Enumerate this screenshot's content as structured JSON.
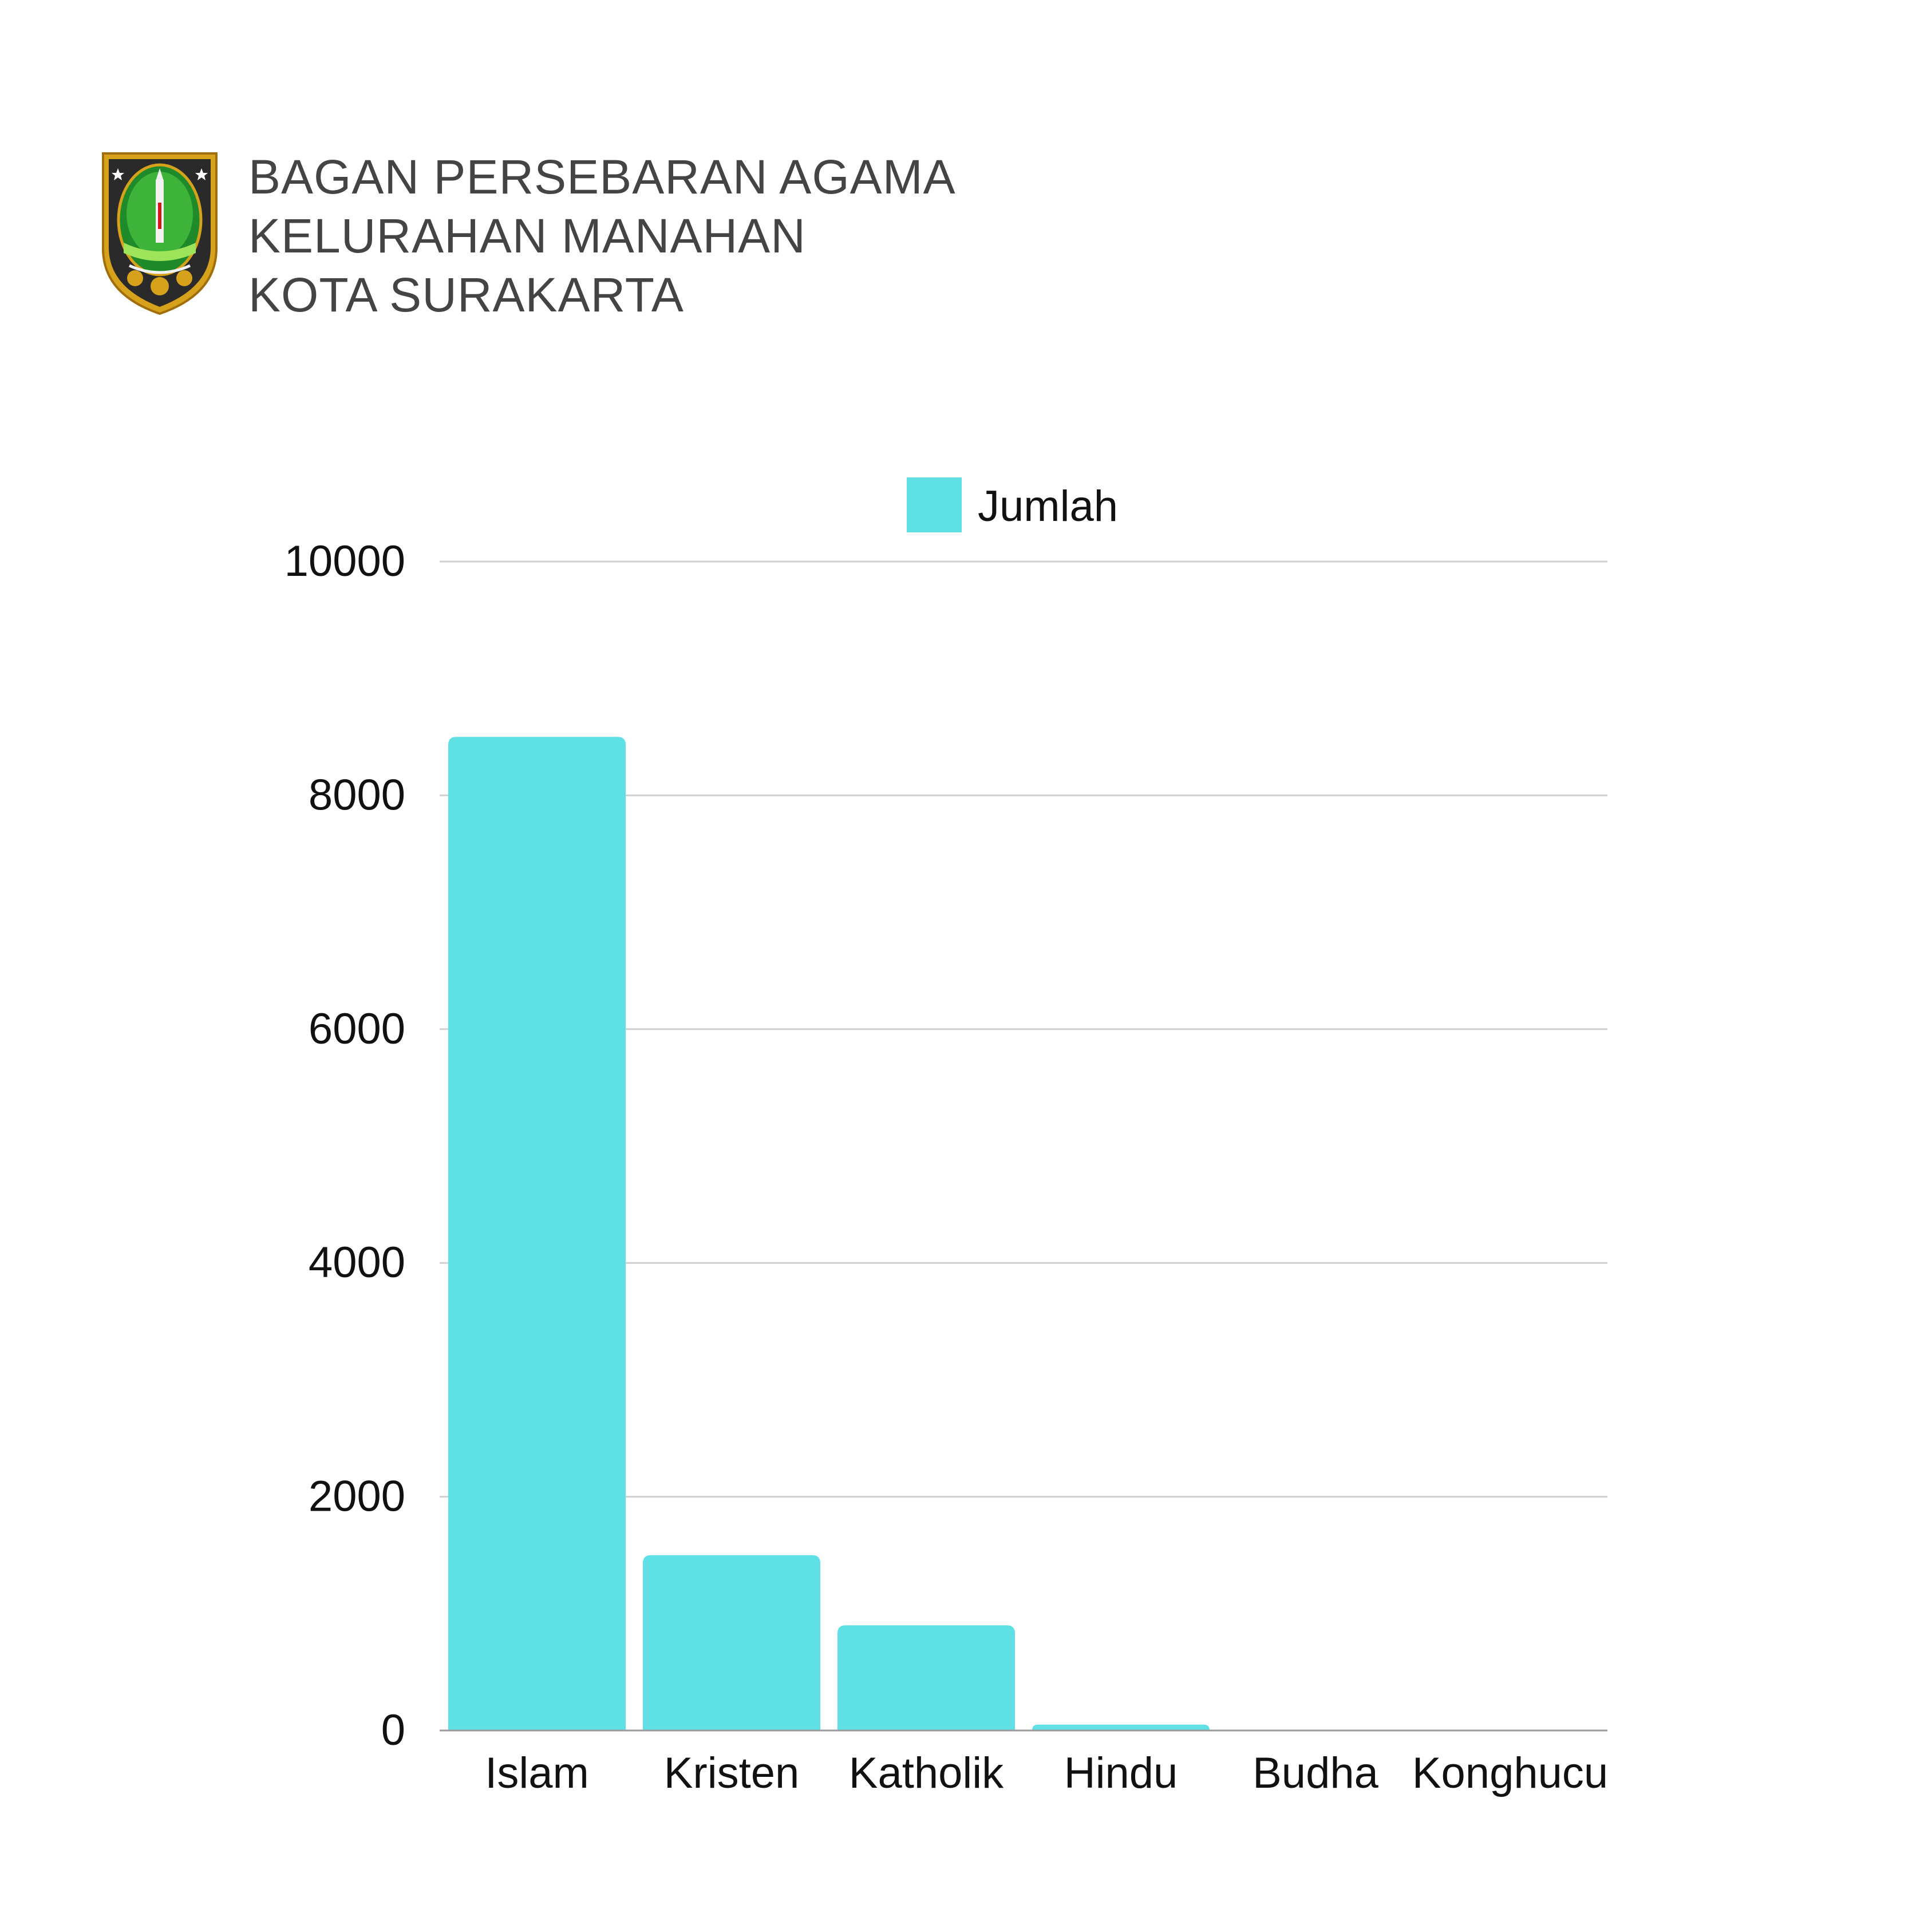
{
  "header": {
    "title_lines": [
      "BAGAN PERSEBARAN AGAMA",
      "KELURAHAN MANAHAN",
      "KOTA SURAKARTA"
    ],
    "logo": "surakarta-city-emblem"
  },
  "colors": {
    "bar": "#5fe0e4",
    "grid": "#d0d0d0",
    "axis": "#9a9a9a",
    "title_text": "#444444",
    "label_text": "#111111"
  },
  "chart_data": {
    "type": "bar",
    "categories": [
      "Islam",
      "Kristen",
      "Katholik",
      "Hindu",
      "Budha",
      "Konghucu"
    ],
    "series": [
      {
        "name": "Jumlah",
        "values": [
          8500,
          1500,
          900,
          50,
          0,
          0
        ]
      }
    ],
    "yticks": [
      0,
      2000,
      4000,
      6000,
      8000,
      10000
    ],
    "ylim": [
      0,
      10000
    ],
    "grid": true,
    "legend_position": "top-center",
    "title": "",
    "xlabel": "",
    "ylabel": ""
  }
}
